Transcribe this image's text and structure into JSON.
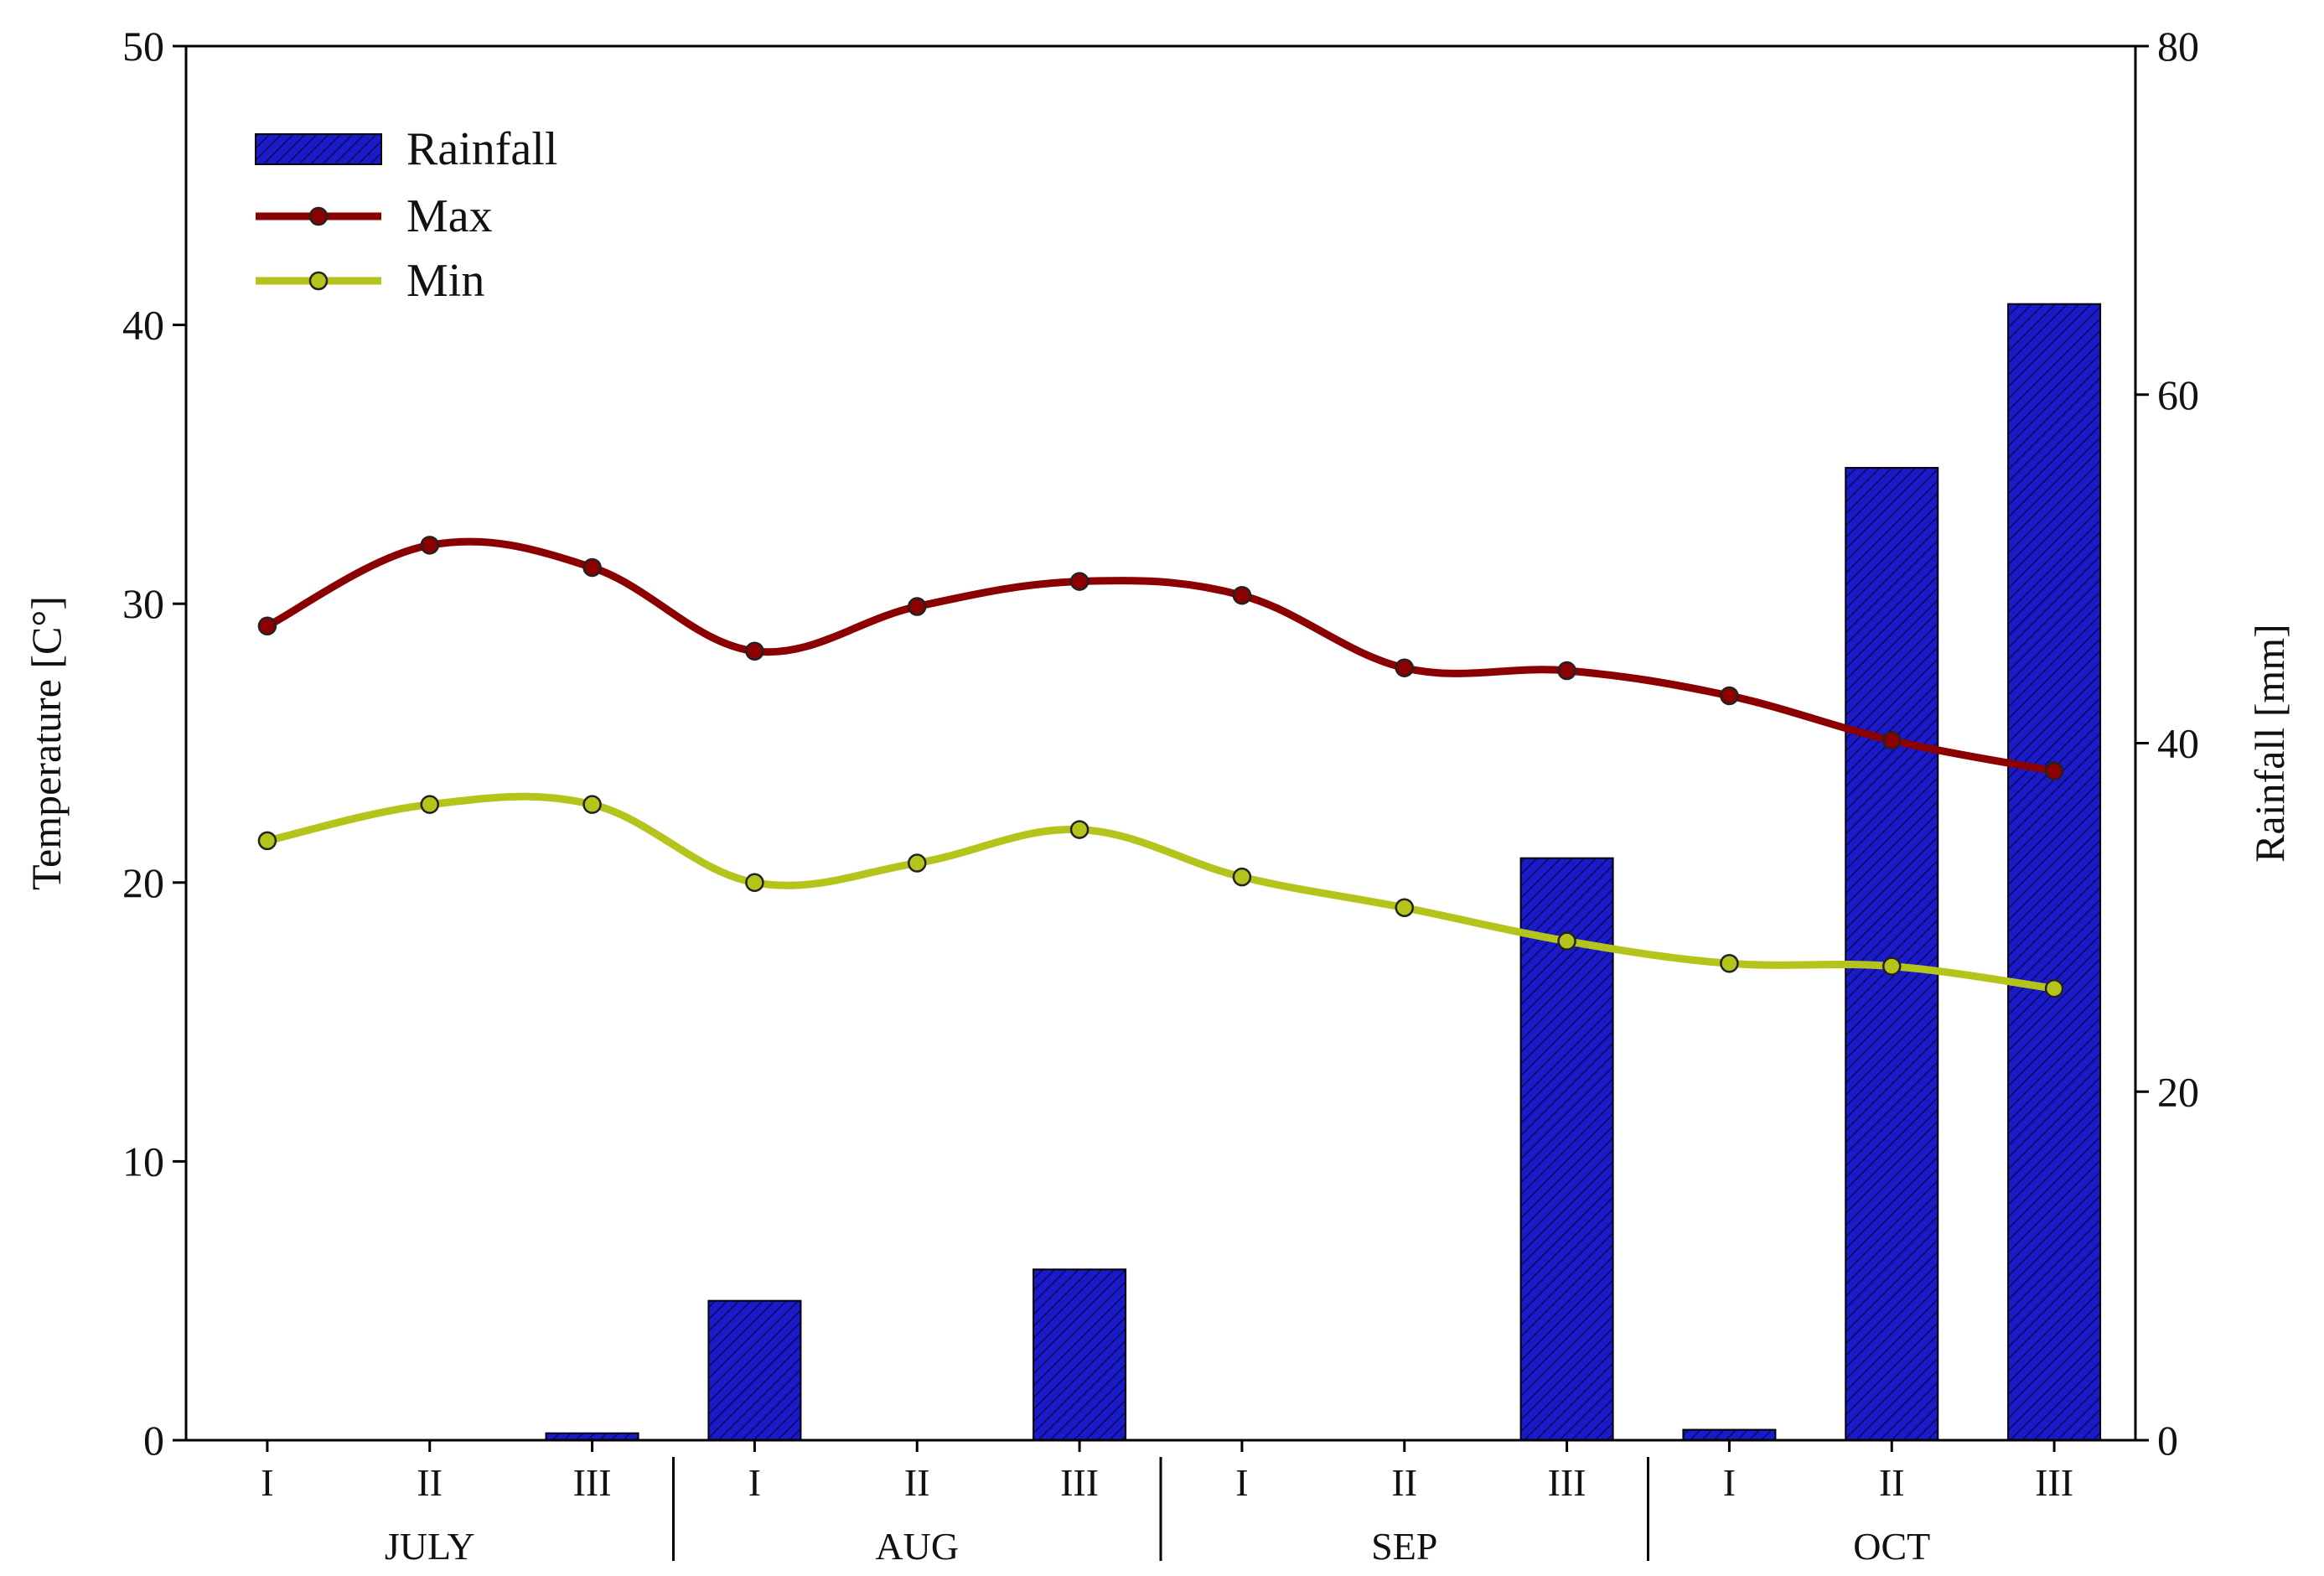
{
  "chart_data": {
    "type": "bar",
    "categories": [
      "I",
      "II",
      "III",
      "I",
      "II",
      "III",
      "I",
      "II",
      "III",
      "I",
      "II",
      "III"
    ],
    "groups": [
      {
        "label": "JULY",
        "span": 3
      },
      {
        "label": "AUG",
        "span": 3
      },
      {
        "label": "SEP",
        "span": 3
      },
      {
        "label": "OCT",
        "span": 3
      }
    ],
    "series": [
      {
        "name": "Rainfall",
        "kind": "bar",
        "axis": "right",
        "color": "#1a1ac8",
        "values": [
          0,
          0,
          0.4,
          8.0,
          0,
          9.8,
          0,
          0,
          33.4,
          0.6,
          55.8,
          65.2
        ]
      },
      {
        "name": "Max",
        "kind": "line",
        "axis": "left",
        "color": "#8b0000",
        "values": [
          29.2,
          32.1,
          31.3,
          28.3,
          29.9,
          30.8,
          30.3,
          27.7,
          27.6,
          26.7,
          25.1,
          24.0
        ]
      },
      {
        "name": "Min",
        "kind": "line",
        "axis": "left",
        "color": "#b5c41a",
        "values": [
          21.5,
          22.8,
          22.8,
          20.0,
          20.7,
          21.9,
          20.2,
          19.1,
          17.9,
          17.1,
          17.0,
          16.2
        ]
      }
    ],
    "ylabel": "Temperature [C°]",
    "ylim": [
      0,
      50
    ],
    "yticks": [
      0,
      10,
      20,
      30,
      40,
      50
    ],
    "y2label": "Rainfall [mm]",
    "y2lim": [
      0,
      80
    ],
    "y2ticks": [
      0,
      20,
      40,
      60,
      80
    ],
    "legend_placement": "top-left",
    "grid": false
  }
}
